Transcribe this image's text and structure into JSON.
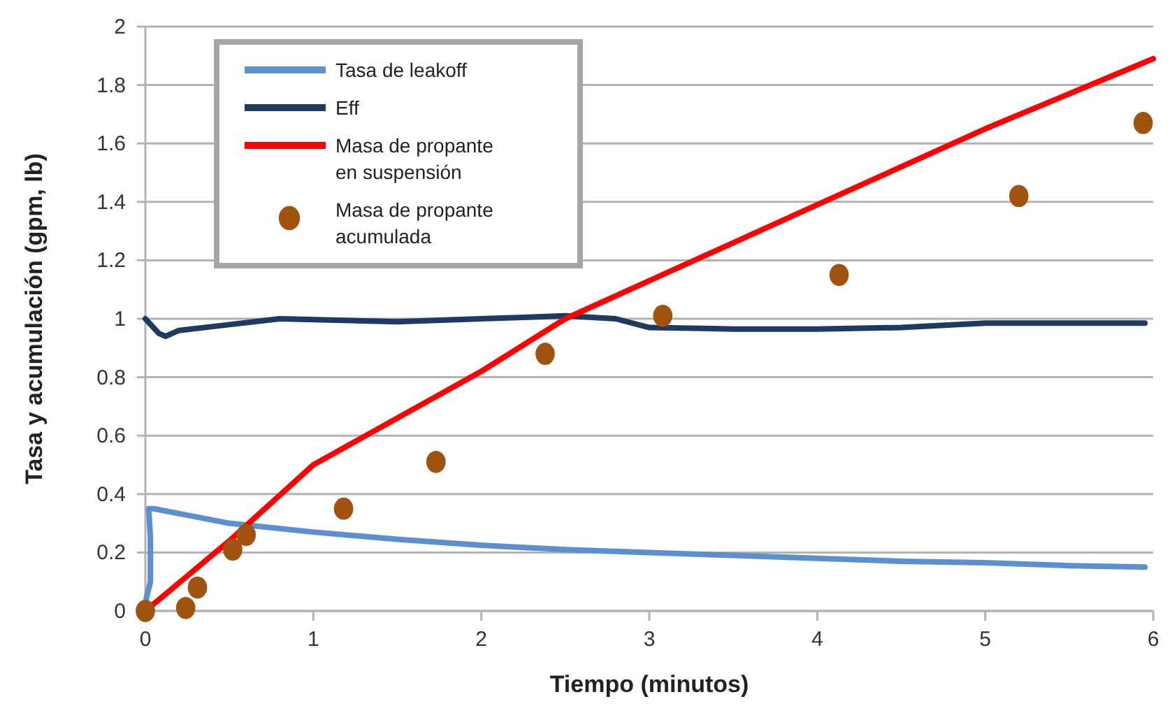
{
  "chart_data": {
    "type": "line",
    "xlabel": "Tiempo (minutos)",
    "ylabel": "Tasa y acumulación (gpm, lb)",
    "xlim": [
      0,
      6
    ],
    "xticks": [
      0,
      1,
      2,
      3,
      4,
      5,
      6
    ],
    "ylim": [
      0,
      2
    ],
    "yticks": [
      0,
      0.2,
      0.4,
      0.6,
      0.8,
      1,
      1.2,
      1.4,
      1.6,
      1.8,
      2
    ],
    "grid": "y",
    "legend": "top left",
    "line_style": "solid",
    "series": [
      {
        "name": "Tasa de leakoff",
        "color": "#5b8fd0",
        "type": "line",
        "x": [
          0,
          0.03,
          0.03,
          0.02,
          0.05,
          0.5,
          1,
          1.5,
          2,
          2.5,
          3,
          3.5,
          4,
          4.5,
          5,
          5.5,
          5.95
        ],
        "values": [
          0.03,
          0.1,
          0.25,
          0.35,
          0.35,
          0.3,
          0.27,
          0.245,
          0.225,
          0.21,
          0.2,
          0.19,
          0.18,
          0.17,
          0.165,
          0.155,
          0.15
        ]
      },
      {
        "name": "Eff",
        "color": "#1f3a60",
        "type": "line",
        "x": [
          0,
          0.08,
          0.12,
          0.2,
          0.5,
          0.8,
          1.5,
          2,
          2.5,
          2.8,
          3,
          3.5,
          4,
          4.5,
          5,
          5.95
        ],
        "values": [
          1,
          0.95,
          0.94,
          0.96,
          0.98,
          1,
          0.99,
          1,
          1.01,
          1,
          0.97,
          0.965,
          0.965,
          0.97,
          0.985,
          0.985
        ]
      },
      {
        "name": "Masa de propante en suspensión",
        "color": "#ff0000",
        "type": "line",
        "x": [
          0,
          0.5,
          1,
          2,
          2.5,
          3,
          4,
          5,
          6
        ],
        "values": [
          0,
          0.24,
          0.5,
          0.82,
          1,
          1.13,
          1.39,
          1.65,
          1.89
        ]
      },
      {
        "name": "Masa de propante acumulada",
        "color": "#a0520f",
        "type": "scatter",
        "marker": "circle",
        "x": [
          0,
          0.24,
          0.31,
          0.52,
          0.6,
          1.18,
          1.73,
          2.38,
          3.08,
          4.13,
          5.2,
          5.94
        ],
        "values": [
          0,
          0.01,
          0.08,
          0.21,
          0.26,
          0.35,
          0.51,
          0.88,
          1.01,
          1.15,
          1.42,
          1.67
        ]
      }
    ]
  }
}
